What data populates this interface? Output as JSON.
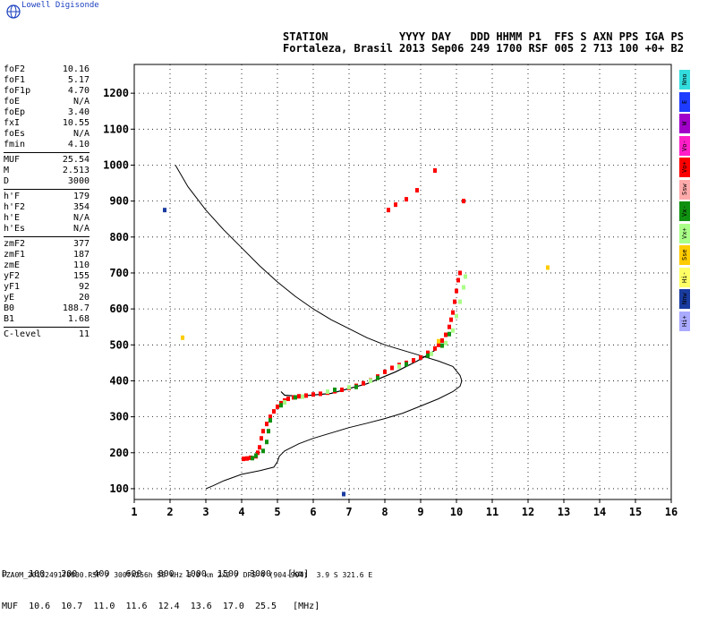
{
  "brand": "Lowell Digisonde",
  "header": {
    "line1": "STATION           YYYY DAY   DDD HHMM P1  FFS S AXN PPS IGA PS",
    "line2": "Fortaleza, Brasil 2013 Sep06 249 1700 RSF 005 2 713 100 +0+ B2"
  },
  "params": [
    {
      "k": "foF2",
      "v": "10.16"
    },
    {
      "k": "foF1",
      "v": "5.17"
    },
    {
      "k": "foF1p",
      "v": "4.70"
    },
    {
      "k": "foE",
      "v": "N/A"
    },
    {
      "k": "foEp",
      "v": "3.40"
    },
    {
      "k": "fxI",
      "v": "10.55"
    },
    {
      "k": "foEs",
      "v": "N/A"
    },
    {
      "k": "fmin",
      "v": "4.10"
    },
    {
      "sep": true
    },
    {
      "k": "MUF",
      "v": "25.54"
    },
    {
      "k": "M",
      "v": "2.513"
    },
    {
      "k": "D",
      "v": "3000"
    },
    {
      "sep": true
    },
    {
      "k": "h'F",
      "v": "179"
    },
    {
      "k": "h'F2",
      "v": "354"
    },
    {
      "k": "h'E",
      "v": "N/A"
    },
    {
      "k": "h'Es",
      "v": "N/A"
    },
    {
      "sep": true
    },
    {
      "k": "zmF2",
      "v": "377"
    },
    {
      "k": "zmF1",
      "v": "187"
    },
    {
      "k": "zmE",
      "v": "110"
    },
    {
      "k": "yF2",
      "v": "155"
    },
    {
      "k": "yF1",
      "v": "92"
    },
    {
      "k": "yE",
      "v": "20"
    },
    {
      "k": "B0",
      "v": "188.7"
    },
    {
      "k": "B1",
      "v": "1.68"
    },
    {
      "sep": true
    },
    {
      "k": "C-level",
      "v": "11"
    }
  ],
  "legend": [
    {
      "label": "Nno",
      "color": "#33dddd"
    },
    {
      "label": "E",
      "color": "#1e3cff"
    },
    {
      "label": "W",
      "color": "#a000c8"
    },
    {
      "label": "Vo-",
      "color": "#ff1ec8"
    },
    {
      "label": "Vo+",
      "color": "#ff0000"
    },
    {
      "label": "Ssw",
      "color": "#ffaaaa"
    },
    {
      "label": "Vx-",
      "color": "#109010"
    },
    {
      "label": "Vx+",
      "color": "#aaff88"
    },
    {
      "label": "Sse",
      "color": "#ffcc00"
    },
    {
      "label": "Hi-",
      "color": "#ffff66"
    },
    {
      "label": "Nnw",
      "color": "#1a3ca0"
    },
    {
      "label": "Hi+",
      "color": "#aaaaff"
    }
  ],
  "footer": {
    "line1": "D    100   200   400   600   800  1000  1500  3000   [km]",
    "line2": "MUF  10.6  10.7  11.0  11.6  12.4  13.6  17.0  25.5   [MHz]",
    "file": "FZA0M_2013249170000.RSF / 300fx256h 50 kHz 5.0 km 2x2 / DPS-4 (904-904)  3.9 S 321.6 E"
  },
  "chart_data": {
    "type": "scatter",
    "title": "",
    "xlabel": "",
    "ylabel": "",
    "xlim": [
      1,
      16
    ],
    "ylim": [
      70,
      1280
    ],
    "xticks": [
      "1",
      "2",
      "3",
      "4",
      "5",
      "6",
      "7",
      "8",
      "9",
      "10",
      "11",
      "12",
      "13",
      "14",
      "15",
      "16"
    ],
    "yticks": [
      "100",
      "200",
      "300",
      "400",
      "500",
      "600",
      "700",
      "800",
      "900",
      "1000",
      "1100",
      "1200"
    ],
    "grid": true,
    "series": [
      {
        "color": "#ff0000",
        "points": [
          [
            4.05,
            183
          ],
          [
            4.15,
            184
          ],
          [
            4.25,
            186
          ],
          [
            4.4,
            190
          ],
          [
            4.45,
            200
          ],
          [
            4.5,
            215
          ],
          [
            4.55,
            240
          ],
          [
            4.6,
            260
          ],
          [
            4.7,
            280
          ],
          [
            4.8,
            300
          ],
          [
            4.9,
            315
          ],
          [
            5.0,
            328
          ],
          [
            5.1,
            338
          ],
          [
            5.2,
            345
          ],
          [
            5.3,
            350
          ],
          [
            5.45,
            354
          ],
          [
            5.6,
            357
          ],
          [
            5.8,
            359
          ],
          [
            6.0,
            362
          ],
          [
            6.2,
            364
          ],
          [
            6.4,
            367
          ],
          [
            6.6,
            371
          ],
          [
            6.8,
            375
          ],
          [
            7.0,
            380
          ],
          [
            7.2,
            386
          ],
          [
            7.4,
            393
          ],
          [
            7.6,
            401
          ],
          [
            7.8,
            412
          ],
          [
            8.0,
            425
          ],
          [
            8.2,
            436
          ],
          [
            8.4,
            444
          ],
          [
            8.6,
            450
          ],
          [
            8.8,
            457
          ],
          [
            9.0,
            465
          ],
          [
            9.2,
            478
          ],
          [
            9.4,
            490
          ],
          [
            9.5,
            500
          ],
          [
            9.6,
            512
          ],
          [
            9.7,
            528
          ],
          [
            9.8,
            550
          ],
          [
            9.85,
            570
          ],
          [
            9.9,
            590
          ],
          [
            9.95,
            620
          ],
          [
            10.0,
            650
          ],
          [
            10.05,
            680
          ],
          [
            10.1,
            700
          ],
          [
            8.1,
            875
          ],
          [
            8.3,
            890
          ],
          [
            8.6,
            905
          ],
          [
            8.9,
            930
          ],
          [
            9.4,
            985
          ],
          [
            10.2,
            900
          ]
        ]
      },
      {
        "color": "#109010",
        "points": [
          [
            4.3,
            185
          ],
          [
            4.4,
            192
          ],
          [
            4.6,
            205
          ],
          [
            4.7,
            230
          ],
          [
            4.75,
            260
          ],
          [
            4.8,
            290
          ],
          [
            5.1,
            332
          ],
          [
            5.5,
            354
          ],
          [
            6.6,
            375
          ],
          [
            7.2,
            383
          ],
          [
            7.8,
            408
          ],
          [
            8.6,
            446
          ],
          [
            9.2,
            470
          ],
          [
            9.6,
            498
          ],
          [
            9.8,
            530
          ]
        ]
      },
      {
        "color": "#aaff88",
        "points": [
          [
            5.2,
            340
          ],
          [
            5.7,
            356
          ],
          [
            6.4,
            370
          ],
          [
            7.0,
            382
          ],
          [
            7.6,
            400
          ],
          [
            8.4,
            440
          ],
          [
            9.3,
            475
          ],
          [
            9.7,
            505
          ],
          [
            9.9,
            540
          ],
          [
            10.0,
            580
          ],
          [
            10.1,
            620
          ],
          [
            10.2,
            660
          ],
          [
            10.25,
            690
          ]
        ]
      },
      {
        "color": "#ffcc00",
        "points": [
          [
            2.35,
            520
          ],
          [
            12.55,
            715
          ],
          [
            9.5,
            510
          ]
        ]
      },
      {
        "color": "#1a3ca0",
        "points": [
          [
            1.85,
            875
          ],
          [
            6.85,
            85
          ]
        ]
      }
    ],
    "profile_curve": [
      [
        2.15,
        1000
      ],
      [
        2.5,
        940
      ],
      [
        3.0,
        875
      ],
      [
        3.5,
        820
      ],
      [
        4.0,
        770
      ],
      [
        4.5,
        720
      ],
      [
        5.0,
        675
      ],
      [
        5.5,
        635
      ],
      [
        6.0,
        600
      ],
      [
        6.5,
        570
      ],
      [
        7.0,
        545
      ],
      [
        7.5,
        520
      ],
      [
        8.0,
        500
      ],
      [
        8.5,
        485
      ],
      [
        9.0,
        470
      ],
      [
        9.5,
        455
      ],
      [
        9.9,
        440
      ],
      [
        10.1,
        415
      ],
      [
        10.15,
        400
      ],
      [
        10.1,
        385
      ],
      [
        9.9,
        370
      ],
      [
        9.5,
        350
      ],
      [
        9.0,
        330
      ],
      [
        8.5,
        310
      ],
      [
        8.0,
        295
      ],
      [
        7.5,
        282
      ],
      [
        7.0,
        270
      ],
      [
        6.5,
        255
      ],
      [
        6.0,
        240
      ],
      [
        5.6,
        225
      ],
      [
        5.2,
        205
      ],
      [
        5.05,
        190
      ],
      [
        5.0,
        175
      ],
      [
        4.9,
        160
      ],
      [
        4.5,
        150
      ],
      [
        4.0,
        140
      ],
      [
        3.5,
        122
      ],
      [
        3.2,
        108
      ],
      [
        3.0,
        100
      ]
    ],
    "trace_curve": [
      [
        5.1,
        370
      ],
      [
        5.2,
        360
      ],
      [
        5.6,
        357
      ],
      [
        6.5,
        365
      ],
      [
        7.5,
        392
      ],
      [
        8.3,
        425
      ],
      [
        8.9,
        455
      ],
      [
        9.2,
        472
      ],
      [
        9.4,
        485
      ]
    ]
  }
}
